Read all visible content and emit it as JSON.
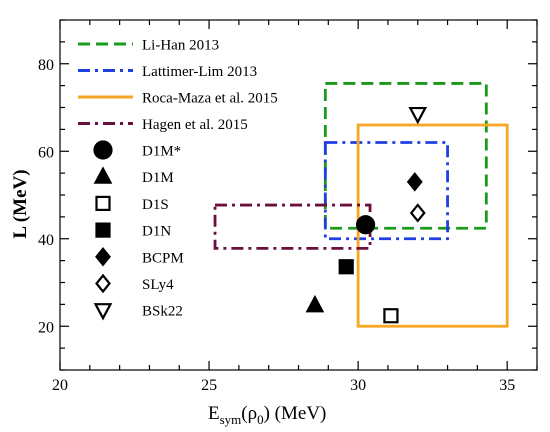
{
  "chart_data": {
    "type": "scatter",
    "xlabel_main": "E",
    "xlabel_sub": "sym",
    "xlabel_rest": "(ρ",
    "xlabel_sub0": "0",
    "xlabel_unit": ")  (MeV)",
    "ylabel": "L  (MeV)",
    "xlim": [
      20,
      36
    ],
    "ylim": [
      10,
      90
    ],
    "xticks": [
      20,
      25,
      30,
      35
    ],
    "yticks": [
      20,
      40,
      60,
      80
    ],
    "grid": false,
    "legend_position": "top-left",
    "constraints": [
      {
        "name": "Li-Han 2013",
        "x": [
          28.9,
          34.3
        ],
        "y": [
          42.4,
          75.5
        ],
        "color": "#1a9a1a",
        "dash": "long-dash"
      },
      {
        "name": "Lattimer-Lim 2013",
        "x": [
          28.9,
          33.0
        ],
        "y": [
          40.0,
          62.0
        ],
        "color": "#1f3fe0",
        "dash": "dash-dot"
      },
      {
        "name": "Roca-Maza et al. 2015",
        "x": [
          30.0,
          35.0
        ],
        "y": [
          20.0,
          66.0
        ],
        "color": "#f5a623",
        "dash": "solid"
      },
      {
        "name": "Hagen et al. 2015",
        "x": [
          25.2,
          30.4
        ],
        "y": [
          37.8,
          47.7
        ],
        "color": "#6b0f3d",
        "dash": "dash-dot"
      }
    ],
    "points": [
      {
        "name": "D1M*",
        "x": 30.25,
        "y": 43.2,
        "marker": "circle",
        "filled": true
      },
      {
        "name": "D1M",
        "x": 28.55,
        "y": 24.8,
        "marker": "triangle-up",
        "filled": true
      },
      {
        "name": "D1S",
        "x": 31.1,
        "y": 22.4,
        "marker": "square",
        "filled": false
      },
      {
        "name": "D1N",
        "x": 29.6,
        "y": 33.6,
        "marker": "square",
        "filled": true
      },
      {
        "name": "BCPM",
        "x": 31.9,
        "y": 53.0,
        "marker": "diamond",
        "filled": true
      },
      {
        "name": "SLy4",
        "x": 32.0,
        "y": 45.9,
        "marker": "diamond",
        "filled": false
      },
      {
        "name": "BSk22",
        "x": 32.0,
        "y": 68.5,
        "marker": "triangle-down",
        "filled": false
      }
    ]
  }
}
